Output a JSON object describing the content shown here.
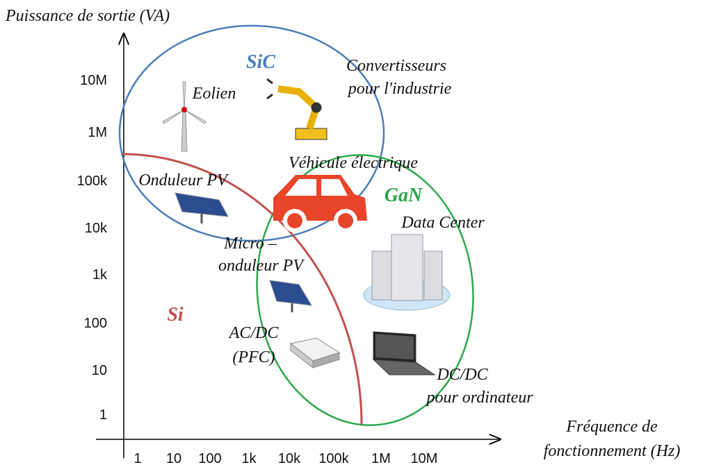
{
  "axes": {
    "y_label": "Puissance de sortie (VA)",
    "x_label": [
      "Fréquence de",
      "fonctionnement (Hz)"
    ],
    "y_ticks": [
      "10M",
      "1M",
      "100k",
      "10k",
      "1k",
      "100",
      "10",
      "1"
    ],
    "x_ticks": [
      "1",
      "10",
      "100",
      "1k",
      "10k",
      "100k",
      "1M",
      "10M"
    ]
  },
  "regions": [
    {
      "label": "SiC"
    },
    {
      "label": "GaN"
    },
    {
      "label": "Si"
    }
  ],
  "applications": [
    {
      "lines": [
        "Eolien"
      ]
    },
    {
      "lines": [
        "Convertisseurs",
        "pour l'industrie"
      ]
    },
    {
      "lines": [
        "Véhicule électrique"
      ]
    },
    {
      "lines": [
        "Onduleur PV"
      ]
    },
    {
      "lines": [
        "Micro –",
        "onduleur PV"
      ]
    },
    {
      "lines": [
        "Data Center"
      ]
    },
    {
      "lines": [
        "AC/DC",
        "(PFC)"
      ]
    },
    {
      "lines": [
        "DC/DC",
        "pour ordinateur"
      ]
    }
  ]
}
